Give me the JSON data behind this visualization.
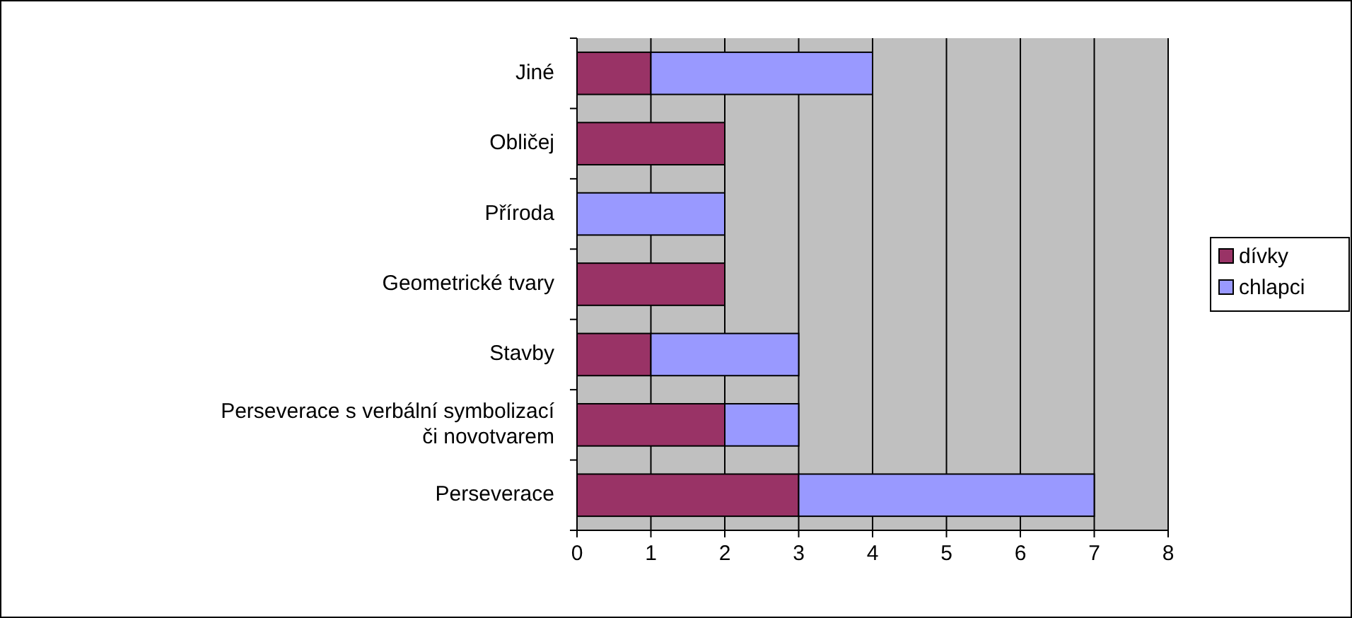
{
  "chart_data": {
    "type": "bar",
    "orientation": "horizontal",
    "stacked": true,
    "categories": [
      "Jiné",
      "Obličej",
      "Příroda",
      "Geometrické tvary",
      "Stavby",
      "Perseverace s verbální symbolizací či novotvarem",
      "Perseverace"
    ],
    "series": [
      {
        "name": "dívky",
        "color": "#993366",
        "values": [
          1,
          2,
          0,
          2,
          1,
          2,
          3
        ]
      },
      {
        "name": "chlapci",
        "color": "#9999ff",
        "values": [
          3,
          0,
          2,
          0,
          2,
          1,
          4
        ]
      }
    ],
    "xlim": [
      0,
      8
    ],
    "xticks": [
      0,
      1,
      2,
      3,
      4,
      5,
      6,
      7,
      8
    ],
    "grid": "x",
    "legend": "right"
  }
}
